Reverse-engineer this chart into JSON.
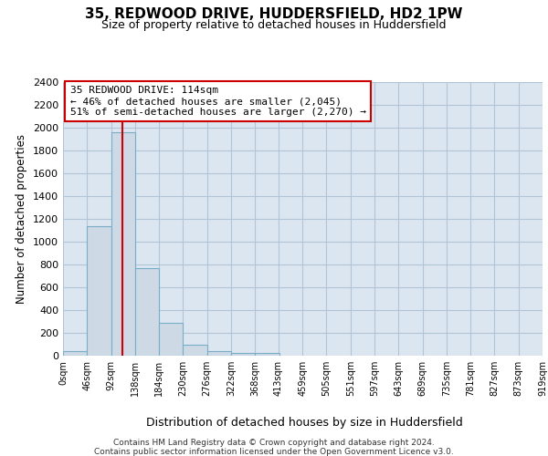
{
  "title1": "35, REDWOOD DRIVE, HUDDERSFIELD, HD2 1PW",
  "title2": "Size of property relative to detached houses in Huddersfield",
  "xlabel": "Distribution of detached houses by size in Huddersfield",
  "ylabel": "Number of detached properties",
  "bin_edges": [
    0,
    46,
    92,
    138,
    184,
    230,
    276,
    322,
    368,
    413,
    459,
    505,
    551,
    597,
    643,
    689,
    735,
    781,
    827,
    873,
    919
  ],
  "bar_heights": [
    40,
    1140,
    1960,
    770,
    290,
    100,
    40,
    25,
    25,
    0,
    0,
    0,
    0,
    0,
    0,
    0,
    0,
    0,
    0,
    0
  ],
  "bar_color": "#cdd9e5",
  "bar_edge_color": "#7aaec8",
  "property_size": 114,
  "annotation_text": "35 REDWOOD DRIVE: 114sqm\n← 46% of detached houses are smaller (2,045)\n51% of semi-detached houses are larger (2,270) →",
  "annotation_box_color": "white",
  "annotation_box_edge": "#cc0000",
  "vline_color": "#cc0000",
  "ylim": [
    0,
    2400
  ],
  "yticks": [
    0,
    200,
    400,
    600,
    800,
    1000,
    1200,
    1400,
    1600,
    1800,
    2000,
    2200,
    2400
  ],
  "tick_labels": [
    "0sqm",
    "46sqm",
    "92sqm",
    "138sqm",
    "184sqm",
    "230sqm",
    "276sqm",
    "322sqm",
    "368sqm",
    "413sqm",
    "459sqm",
    "505sqm",
    "551sqm",
    "597sqm",
    "643sqm",
    "689sqm",
    "735sqm",
    "781sqm",
    "827sqm",
    "873sqm",
    "919sqm"
  ],
  "footer1": "Contains HM Land Registry data © Crown copyright and database right 2024.",
  "footer2": "Contains public sector information licensed under the Open Government Licence v3.0.",
  "fig_bg_color": "#ffffff",
  "plot_bg_color": "#dce6f0",
  "grid_color": "#b0c4d8"
}
